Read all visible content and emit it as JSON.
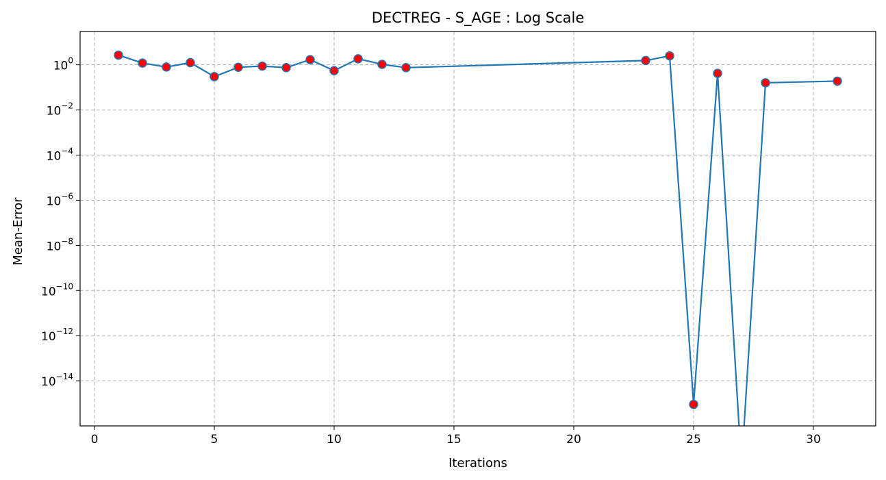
{
  "chart_data": {
    "type": "line",
    "title": "DECTREG - S_AGE : Log Scale",
    "xlabel": "Iterations",
    "ylabel": "Mean-Error",
    "yscale": "log",
    "grid": true,
    "line_color": "#1f77b4",
    "marker_face_color": "#ff0000",
    "marker_edge_color": "#1f77b4",
    "xlim": [
      -0.6,
      32.6
    ],
    "ylim": [
      1e-16,
      30
    ],
    "x_ticks": [
      0,
      5,
      10,
      15,
      20,
      25,
      30
    ],
    "x_tick_labels": [
      "0",
      "5",
      "10",
      "15",
      "20",
      "25",
      "30"
    ],
    "y_ticks": [
      {
        "value": 1,
        "base": "10",
        "exp": "0"
      },
      {
        "value": 0.01,
        "base": "10",
        "exp": "−2"
      },
      {
        "value": 0.0001,
        "base": "10",
        "exp": "−4"
      },
      {
        "value": 1e-06,
        "base": "10",
        "exp": "−6"
      },
      {
        "value": 1e-08,
        "base": "10",
        "exp": "−8"
      },
      {
        "value": 1e-10,
        "base": "10",
        "exp": "−10"
      },
      {
        "value": 1e-12,
        "base": "10",
        "exp": "−12"
      },
      {
        "value": 1e-14,
        "base": "10",
        "exp": "−14"
      }
    ],
    "series": [
      {
        "points": [
          {
            "x": 1,
            "y": 2.7
          },
          {
            "x": 2,
            "y": 1.2
          },
          {
            "x": 3,
            "y": 0.8
          },
          {
            "x": 4,
            "y": 1.25
          },
          {
            "x": 5,
            "y": 0.3
          },
          {
            "x": 6,
            "y": 0.78
          },
          {
            "x": 7,
            "y": 0.88
          },
          {
            "x": 8,
            "y": 0.75
          },
          {
            "x": 9,
            "y": 1.7
          },
          {
            "x": 10,
            "y": 0.55
          },
          {
            "x": 11,
            "y": 1.85
          },
          {
            "x": 12,
            "y": 1.05
          },
          {
            "x": 13,
            "y": 0.75
          },
          {
            "x": 23,
            "y": 1.55
          },
          {
            "x": 24,
            "y": 2.5
          },
          {
            "x": 25,
            "y": 9e-16
          },
          {
            "x": 26,
            "y": 0.42
          },
          {
            "x": 27,
            "y": 0
          },
          {
            "x": 28,
            "y": 0.16
          },
          {
            "x": 31,
            "y": 0.19
          }
        ]
      }
    ]
  }
}
